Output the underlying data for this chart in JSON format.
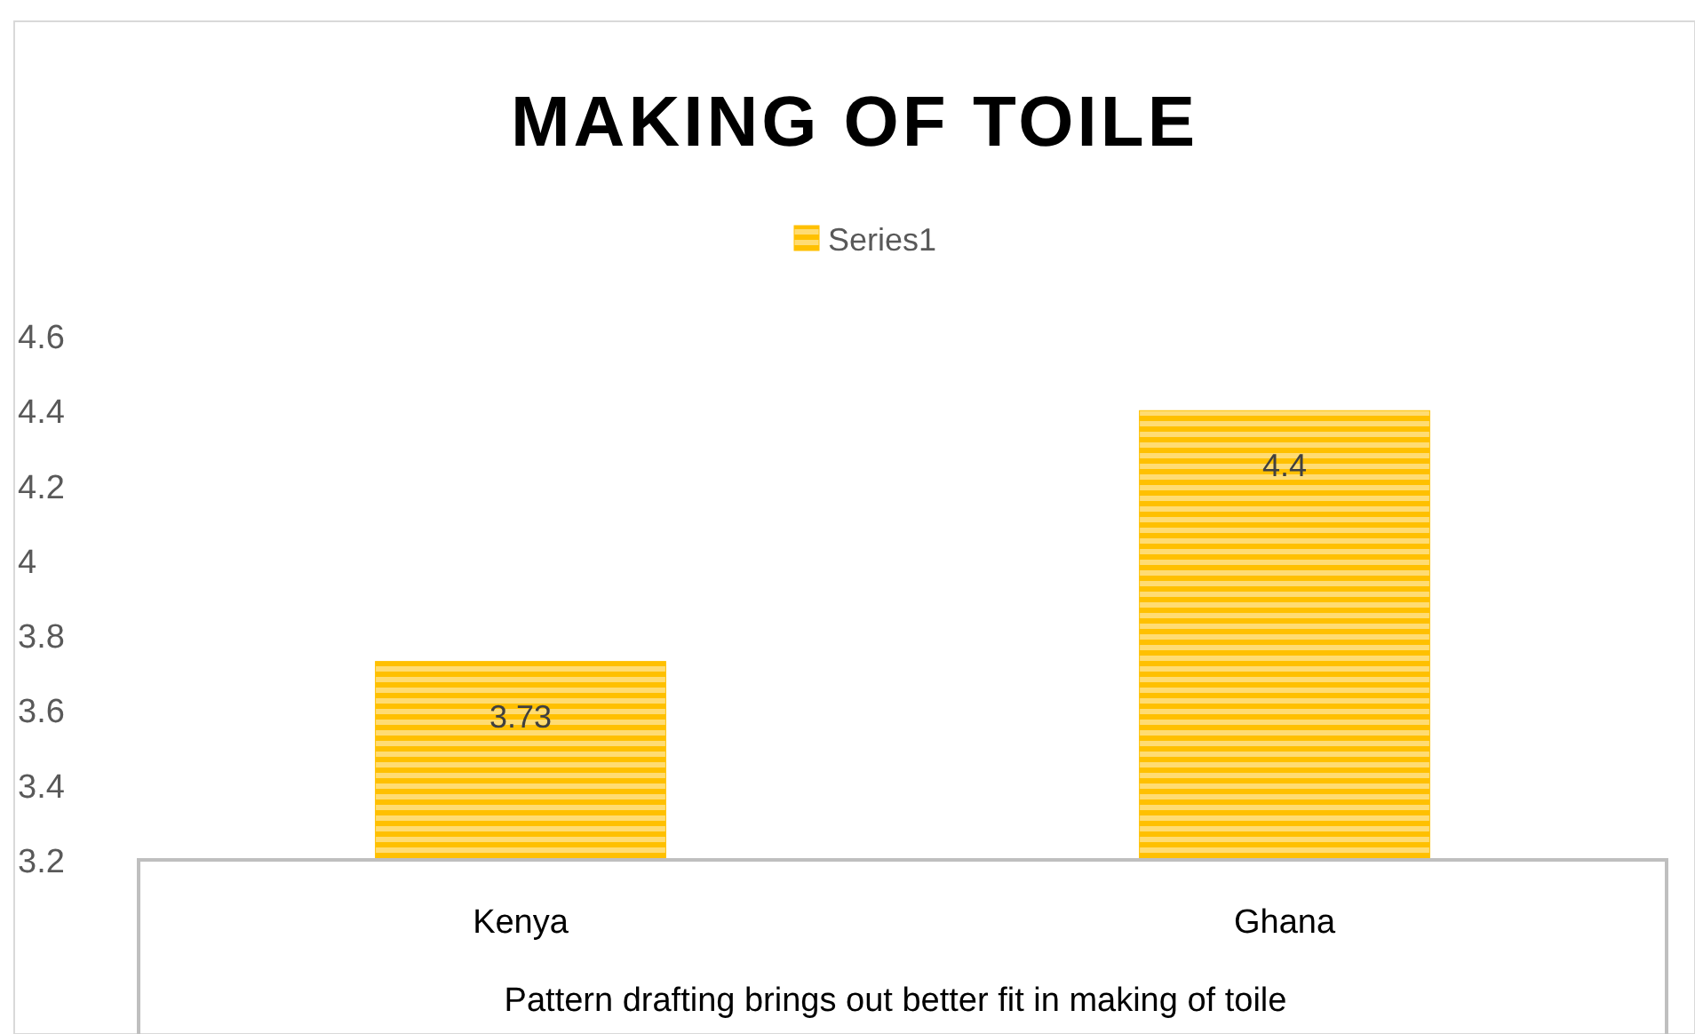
{
  "chart_data": {
    "type": "bar",
    "title": "MAKING  OF  TOILE",
    "xlabel": "Pattern drafting brings out better fit in making of toile",
    "categories": [
      "Kenya",
      "Ghana"
    ],
    "series": [
      {
        "name": "Series1",
        "color": "#ffc000",
        "values": [
          3.73,
          4.4
        ]
      }
    ],
    "ylim": [
      3.2,
      4.6
    ],
    "yticks": [
      3.2,
      3.4,
      3.6,
      3.8,
      4,
      4.2,
      4.4,
      4.6
    ],
    "data_labels": true,
    "legend": "top",
    "grid": false
  }
}
